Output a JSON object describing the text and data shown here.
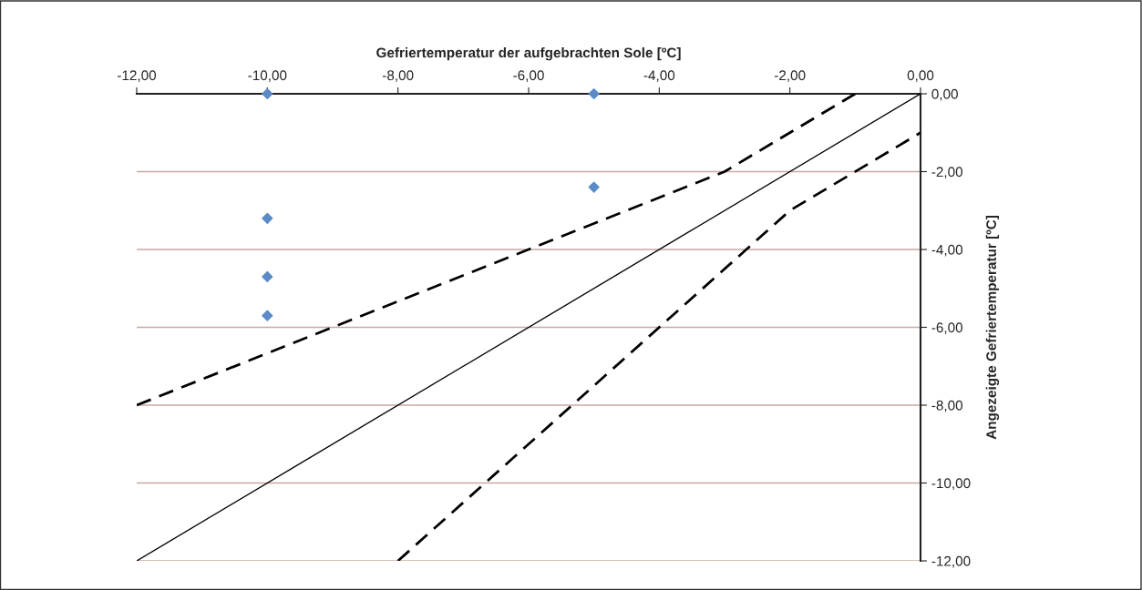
{
  "chart_data": {
    "type": "scatter",
    "xlabel": "Gefriertemperatur der aufgebrachten Sole [ºC]",
    "ylabel": "Angezeigte Gefriertemperatur [ºC]",
    "xlim": [
      -12,
      0
    ],
    "ylim": [
      -12,
      0
    ],
    "xticks": [
      {
        "value": -12,
        "label": "-12,00"
      },
      {
        "value": -10,
        "label": "-10,00"
      },
      {
        "value": -8,
        "label": "-8,00"
      },
      {
        "value": -6,
        "label": "-6,00"
      },
      {
        "value": -4,
        "label": "-4,00"
      },
      {
        "value": -2,
        "label": "-2,00"
      },
      {
        "value": 0,
        "label": "0,00"
      }
    ],
    "yticks": [
      {
        "value": 0,
        "label": "0,00"
      },
      {
        "value": -2,
        "label": "-2,00"
      },
      {
        "value": -4,
        "label": "-4,00"
      },
      {
        "value": -6,
        "label": "-6,00"
      },
      {
        "value": -8,
        "label": "-8,00"
      },
      {
        "value": -10,
        "label": "-10,00"
      },
      {
        "value": -12,
        "label": "-12,00"
      }
    ],
    "grid": "y",
    "legend": false,
    "series": [
      {
        "color": "#5b8bc6",
        "marker": "diamond",
        "x": [
          -10,
          -5,
          -5,
          -10,
          -10,
          -10
        ],
        "values": [
          0,
          0,
          -2.4,
          -3.2,
          -4.7,
          -5.7
        ]
      },
      {
        "type": "line",
        "color": "#000000",
        "line_style": "solid",
        "x": [
          -12,
          0
        ],
        "values": [
          -12,
          0
        ]
      },
      {
        "type": "line",
        "color": "#000000",
        "line_style": "dashed",
        "x": [
          -12,
          -3,
          -1
        ],
        "values": [
          -8,
          -2,
          0
        ]
      },
      {
        "type": "line",
        "color": "#000000",
        "line_style": "dashed",
        "x": [
          -8,
          -2,
          0
        ],
        "values": [
          -12,
          -3,
          -1
        ]
      }
    ]
  }
}
